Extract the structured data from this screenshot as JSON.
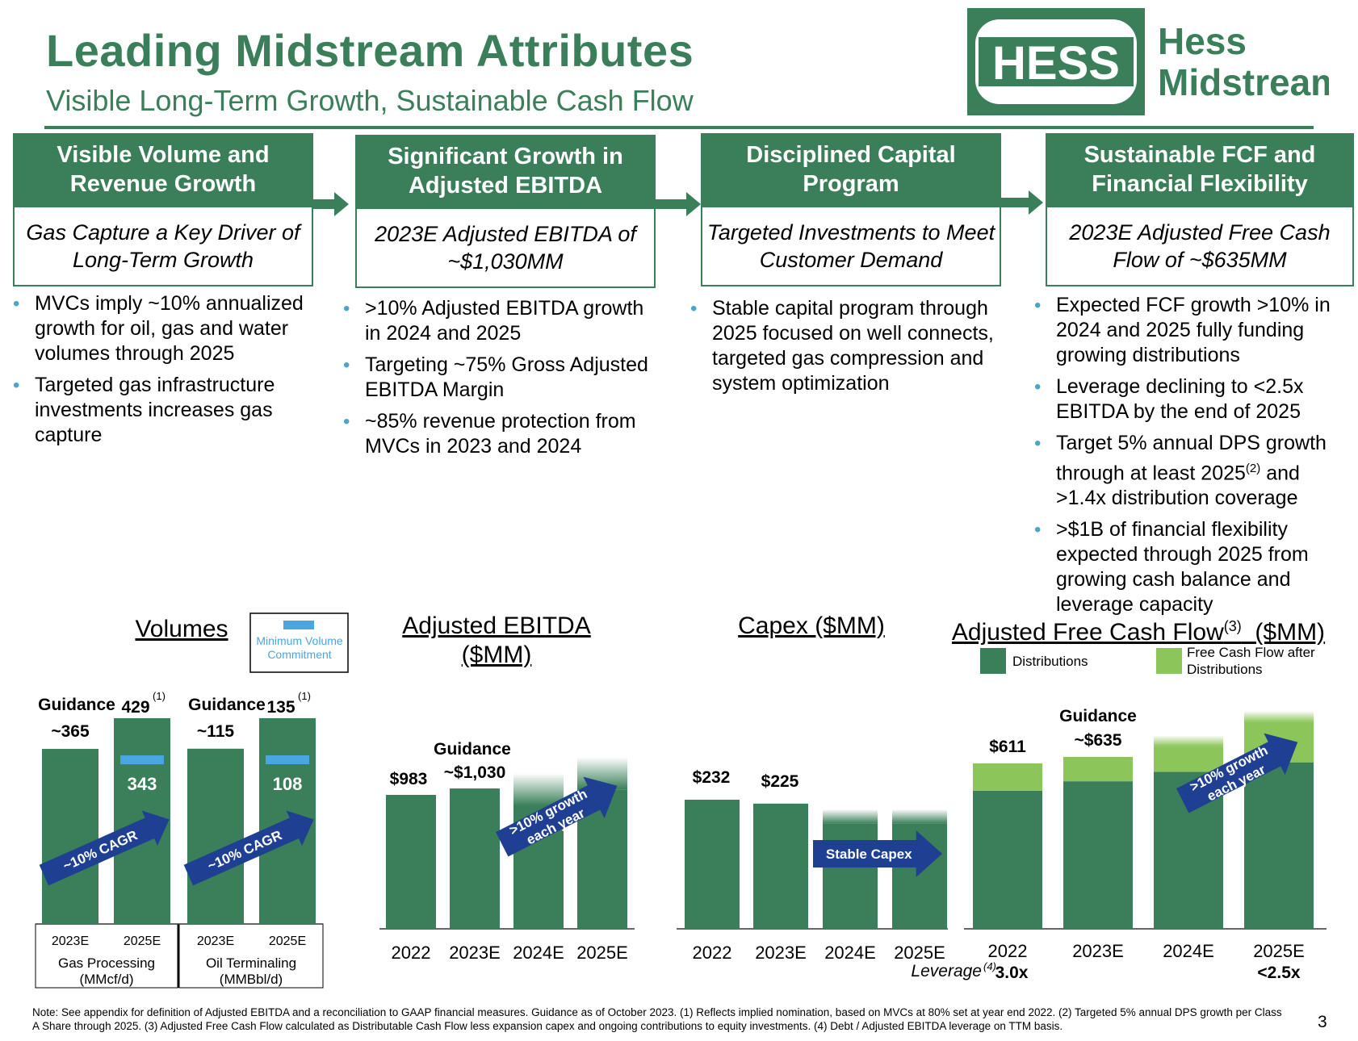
{
  "header": {
    "title": "Leading Midstream Attributes",
    "subtitle": "Visible Long-Term Growth, Sustainable Cash Flow",
    "logo_text_1": "HESS",
    "logo_text_2": "Hess",
    "logo_text_3": "Midstream"
  },
  "colors": {
    "green": "#3a7f59",
    "light_green": "#8cc65a",
    "arrow_blue": "#1f3f93",
    "mvc_blue": "#4aa6e0"
  },
  "columns": [
    {
      "heading": "Visible Volume and Revenue Growth",
      "highlight": "Gas Capture a Key Driver of Long-Term Growth",
      "bullets": [
        "MVCs imply ~10% annualized growth for oil, gas and water volumes through 2025",
        "Targeted gas infrastructure investments increases gas capture"
      ]
    },
    {
      "heading": "Significant Growth in Adjusted EBITDA",
      "highlight": "2023E Adjusted EBITDA of ~$1,030MM",
      "bullets": [
        ">10% Adjusted EBITDA growth in 2024 and 2025",
        "Targeting ~75% Gross Adjusted EBITDA Margin",
        "~85% revenue protection from MVCs in 2023 and 2024"
      ]
    },
    {
      "heading": "Disciplined Capital Program",
      "highlight": "Targeted Investments to Meet Customer Demand",
      "bullets": [
        "Stable capital program through 2025 focused on well connects, targeted gas compression and system optimization"
      ]
    },
    {
      "heading": "Sustainable FCF and Financial Flexibility",
      "highlight": "2023E Adjusted Free Cash Flow of ~$635MM",
      "bullets": [
        "Expected FCF growth >10% in 2024 and 2025 fully funding growing distributions",
        "Leverage declining to <2.5x EBITDA by the end of 2025",
        "Target 5% annual DPS growth through at least 2025",
        "and >1.4x distribution coverage",
        ">$1B of financial flexibility expected through 2025 from growing cash balance and leverage capacity"
      ],
      "bullet3_sup": "(2)"
    }
  ],
  "chart_data": [
    {
      "type": "bar",
      "title": "Volumes",
      "legend": [
        "Minimum Volume Commitment"
      ],
      "groups": [
        {
          "name": "Gas Processing",
          "unit": "(MMcf/d)",
          "categories": [
            "2023E",
            "2025E"
          ],
          "values": [
            365,
            429
          ],
          "labels": [
            "Guidance",
            "~365",
            "429"
          ],
          "label_sup": "(1)",
          "mvc": 343,
          "arrow": "~10% CAGR"
        },
        {
          "name": "Oil Terminaling",
          "unit": "(MMBbl/d)",
          "categories": [
            "2023E",
            "2025E"
          ],
          "values": [
            115,
            135
          ],
          "labels": [
            "Guidance",
            "~115",
            "135"
          ],
          "label_sup": "(1)",
          "mvc": 108,
          "arrow": "~10% CAGR"
        }
      ]
    },
    {
      "type": "bar",
      "title": "Adjusted EBITDA ($MM)",
      "categories": [
        "2022",
        "2023E",
        "2024E",
        "2025E"
      ],
      "values": [
        983,
        1030,
        1140,
        1260
      ],
      "labels": [
        "$983",
        "~$1,030",
        "",
        ""
      ],
      "guidance_label": "Guidance",
      "arrow": ">10% growth each year",
      "arrow_lines": [
        ">10% growth",
        "each year"
      ]
    },
    {
      "type": "bar",
      "title": "Capex ($MM)",
      "categories": [
        "2022",
        "2023E",
        "2024E",
        "2025E"
      ],
      "values": [
        232,
        225,
        215,
        215
      ],
      "labels": [
        "$232",
        "$225",
        "",
        ""
      ],
      "arrow": "Stable Capex",
      "leverage_label": "Leverage",
      "leverage_sup": "(4)"
    },
    {
      "type": "bar",
      "title": "Adjusted Free Cash Flow ($MM)",
      "title_main": "Adjusted Free Cash Flow",
      "title_sup": "(3)",
      "title_unit": "($MM)",
      "categories": [
        "2022",
        "2023E",
        "2024E",
        "2025E"
      ],
      "series": [
        {
          "name": "Distributions",
          "values": [
            510,
            545,
            580,
            615
          ]
        },
        {
          "name": "Free Cash Flow after Distributions",
          "values": [
            101,
            90,
            135,
            190
          ]
        }
      ],
      "labels": [
        "$611",
        "~$635",
        "",
        ""
      ],
      "guidance_label": "Guidance",
      "leverage": [
        "3.0x",
        "",
        "",
        "<2.5x"
      ],
      "arrow": ">10% growth each year",
      "arrow_lines": [
        ">10% growth",
        "each year"
      ]
    }
  ],
  "footer": {
    "note": "Note: See appendix for definition of Adjusted EBITDA and a reconciliation to GAAP financial measures.  Guidance as of October 2023. (1) Reflects implied nomination, based on MVCs at 80% set at year end 2022. (2) Targeted 5% annual DPS growth per Class A Share through 2025. (3) Adjusted Free Cash Flow calculated as Distributable Cash Flow less expansion capex and ongoing contributions to equity investments. (4) Debt / Adjusted EBITDA leverage on TTM basis.",
    "page": "3"
  }
}
